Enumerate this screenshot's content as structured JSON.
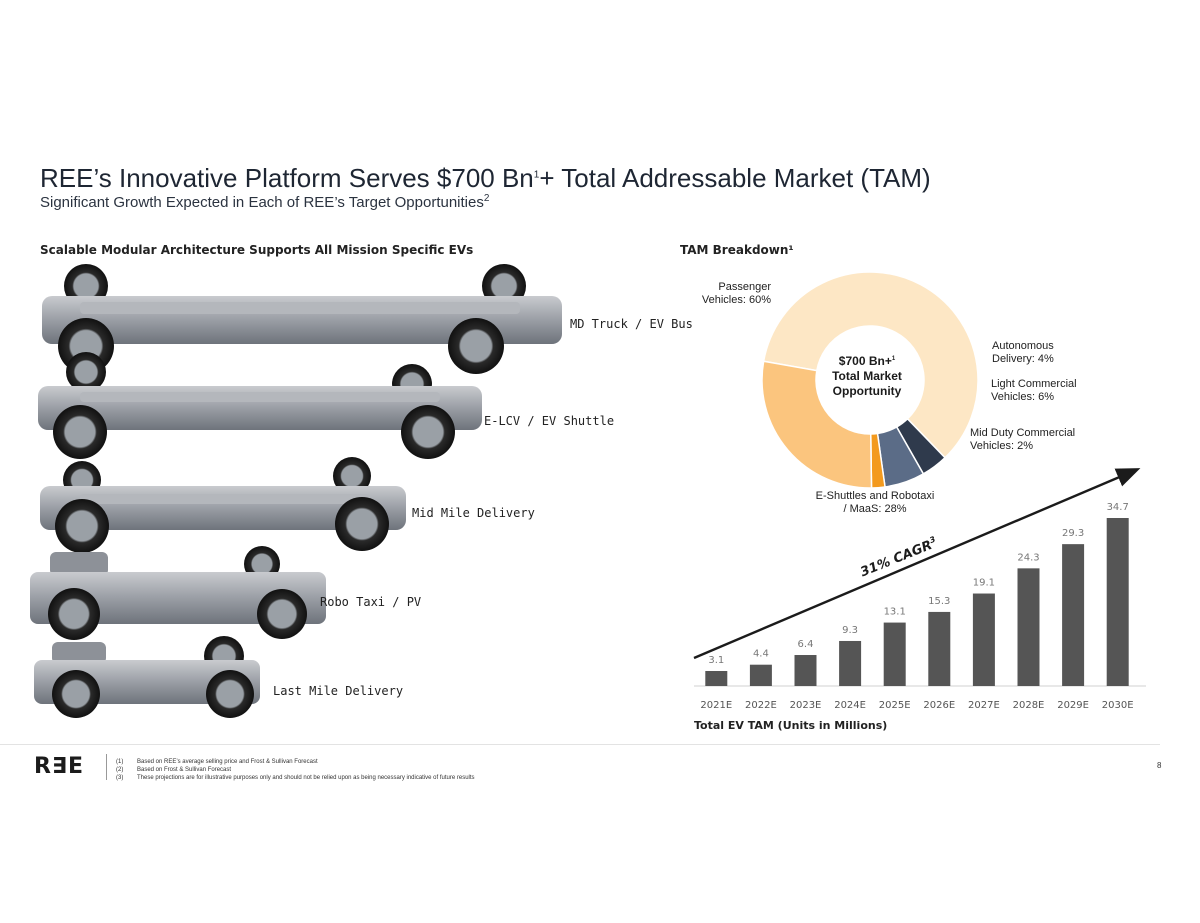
{
  "header": {
    "title_main": "REE’s Innovative Platform Serves $700 Bn",
    "title_sup": "1",
    "title_rest": "+ Total Addressable Market (TAM)",
    "subtitle": "Significant Growth Expected in Each of REE’s Target Opportunities",
    "subtitle_sup": "2"
  },
  "platforms": {
    "heading": "Scalable Modular Architecture Supports All Mission Specific EVs",
    "items": [
      {
        "label": "MD Truck / EV Bus"
      },
      {
        "label": "E-LCV  / EV Shuttle"
      },
      {
        "label": "Mid Mile Delivery"
      },
      {
        "label": "Robo Taxi / PV"
      },
      {
        "label": "Last Mile Delivery"
      }
    ]
  },
  "tam": {
    "heading": "TAM Breakdown¹",
    "center_line1": "$700 Bn+",
    "center_sup": "1",
    "center_line2": "Total Market",
    "center_line3": "Opportunity",
    "segments": [
      {
        "label_a": "Passenger",
        "label_b": "Vehicles: 60%",
        "value": 60,
        "color": "#fde7c5"
      },
      {
        "label_a": "Autonomous",
        "label_b": "Delivery: 4%",
        "value": 4,
        "color": "#2f3a4c"
      },
      {
        "label_a": "Light Commercial",
        "label_b": "Vehicles: 6%",
        "value": 6,
        "color": "#5b6c87"
      },
      {
        "label_a": "Mid Duty Commercial",
        "label_b": "Vehicles: 2%",
        "value": 2,
        "color": "#f39a1e"
      },
      {
        "label_a": "E-Shuttles and Robotaxi",
        "label_b": "/ MaaS: 28%",
        "value": 28,
        "color": "#fbc57e"
      }
    ]
  },
  "chart_data": {
    "type": "bar",
    "title": "Total EV TAM (Units in Millions)",
    "title_text": "Total EV TAM (Units in Millions)",
    "categories": [
      "2021E",
      "2022E",
      "2023E",
      "2024E",
      "2025E",
      "2026E",
      "2027E",
      "2028E",
      "2029E",
      "2030E"
    ],
    "values": [
      3.1,
      4.4,
      6.4,
      9.3,
      13.1,
      15.3,
      19.1,
      24.3,
      29.3,
      34.7
    ],
    "value_labels": [
      "3.1",
      "4.4",
      "6.4",
      "9.3",
      "13.1",
      "15.3",
      "19.1",
      "24.3",
      "29.3",
      "34.7"
    ],
    "ylim": [
      0,
      34.7
    ],
    "bar_color": "#555555",
    "annotation": "31% CAGR",
    "annotation_sup": "3",
    "xlabel": "",
    "ylabel": ""
  },
  "footer": {
    "logo": "R∃E",
    "notes": [
      {
        "num": "(1)",
        "text": "Based on REE’s average selling price and Frost & Sullivan Forecast"
      },
      {
        "num": "(2)",
        "text": "Based on Frost & Sullivan Forecast"
      },
      {
        "num": "(3)",
        "text": "These projections are for illustrative purposes only and should not be relied upon as being necessary indicative of future results"
      }
    ],
    "page_number": "8"
  }
}
